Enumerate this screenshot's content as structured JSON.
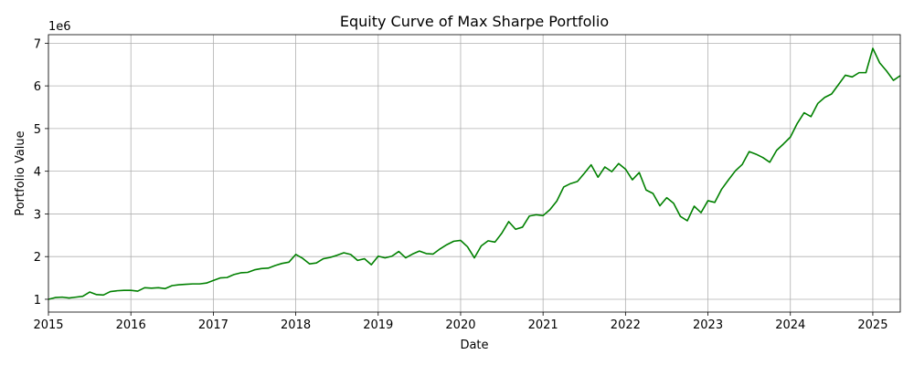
{
  "chart_data": {
    "type": "line",
    "title": "Equity Curve of Max Sharpe Portfolio",
    "xlabel": "Date",
    "ylabel": "Portfolio Value",
    "y_offset_label": "1e6",
    "x_tick_labels": [
      "2015",
      "2016",
      "2017",
      "2018",
      "2019",
      "2020",
      "2021",
      "2022",
      "2023",
      "2024",
      "2025"
    ],
    "y_tick_labels": [
      "1",
      "2",
      "3",
      "4",
      "5",
      "6",
      "7"
    ],
    "xlim": [
      "2015-01",
      "2025-05"
    ],
    "ylim": [
      700000,
      7200000
    ],
    "grid": true,
    "line_color": "#008000",
    "series": [
      {
        "x": [
          "2015-01",
          "2015-02",
          "2015-03",
          "2015-04",
          "2015-05",
          "2015-06",
          "2015-07",
          "2015-08",
          "2015-09",
          "2015-10",
          "2015-11",
          "2015-12",
          "2016-01",
          "2016-02",
          "2016-03",
          "2016-04",
          "2016-05",
          "2016-06",
          "2016-07",
          "2016-08",
          "2016-09",
          "2016-10",
          "2016-11",
          "2016-12",
          "2017-01",
          "2017-02",
          "2017-03",
          "2017-04",
          "2017-05",
          "2017-06",
          "2017-07",
          "2017-08",
          "2017-09",
          "2017-10",
          "2017-11",
          "2017-12",
          "2018-01",
          "2018-02",
          "2018-03",
          "2018-04",
          "2018-05",
          "2018-06",
          "2018-07",
          "2018-08",
          "2018-09",
          "2018-10",
          "2018-11",
          "2018-12",
          "2019-01",
          "2019-02",
          "2019-03",
          "2019-04",
          "2019-05",
          "2019-06",
          "2019-07",
          "2019-08",
          "2019-09",
          "2019-10",
          "2019-11",
          "2019-12",
          "2020-01",
          "2020-02",
          "2020-03",
          "2020-04",
          "2020-05",
          "2020-06",
          "2020-07",
          "2020-08",
          "2020-09",
          "2020-10",
          "2020-11",
          "2020-12",
          "2021-01",
          "2021-02",
          "2021-03",
          "2021-04",
          "2021-05",
          "2021-06",
          "2021-07",
          "2021-08",
          "2021-09",
          "2021-10",
          "2021-11",
          "2021-12",
          "2022-01",
          "2022-02",
          "2022-03",
          "2022-04",
          "2022-05",
          "2022-06",
          "2022-07",
          "2022-08",
          "2022-09",
          "2022-10",
          "2022-11",
          "2022-12",
          "2023-01",
          "2023-02",
          "2023-03",
          "2023-04",
          "2023-05",
          "2023-06",
          "2023-07",
          "2023-08",
          "2023-09",
          "2023-10",
          "2023-11",
          "2023-12",
          "2024-01",
          "2024-02",
          "2024-03",
          "2024-04",
          "2024-05",
          "2024-06",
          "2024-07",
          "2024-08",
          "2024-09",
          "2024-10",
          "2024-11",
          "2024-12",
          "2025-01",
          "2025-02",
          "2025-03",
          "2025-04",
          "2025-05"
        ],
        "values": [
          1000000,
          1040000,
          1050000,
          1030000,
          1050000,
          1070000,
          1170000,
          1110000,
          1100000,
          1180000,
          1200000,
          1210000,
          1210000,
          1190000,
          1270000,
          1260000,
          1270000,
          1250000,
          1320000,
          1340000,
          1350000,
          1360000,
          1360000,
          1380000,
          1440000,
          1500000,
          1510000,
          1580000,
          1620000,
          1630000,
          1690000,
          1720000,
          1730000,
          1790000,
          1840000,
          1870000,
          2050000,
          1960000,
          1830000,
          1850000,
          1950000,
          1980000,
          2030000,
          2090000,
          2050000,
          1910000,
          1950000,
          1810000,
          2010000,
          1970000,
          2010000,
          2120000,
          1970000,
          2060000,
          2130000,
          2070000,
          2060000,
          2180000,
          2280000,
          2360000,
          2380000,
          2230000,
          1970000,
          2250000,
          2370000,
          2340000,
          2550000,
          2820000,
          2640000,
          2690000,
          2950000,
          2980000,
          2960000,
          3100000,
          3300000,
          3630000,
          3710000,
          3760000,
          3950000,
          4150000,
          3860000,
          4100000,
          3990000,
          4180000,
          4050000,
          3800000,
          3970000,
          3560000,
          3480000,
          3190000,
          3380000,
          3250000,
          2940000,
          2840000,
          3180000,
          3030000,
          3310000,
          3270000,
          3580000,
          3800000,
          4010000,
          4160000,
          4460000,
          4400000,
          4320000,
          4210000,
          4490000,
          4640000,
          4800000,
          5120000,
          5370000,
          5280000,
          5590000,
          5730000,
          5810000,
          6030000,
          6250000,
          6210000,
          6310000,
          6310000,
          6880000,
          6540000,
          6350000,
          6130000,
          6240000
        ]
      }
    ]
  }
}
